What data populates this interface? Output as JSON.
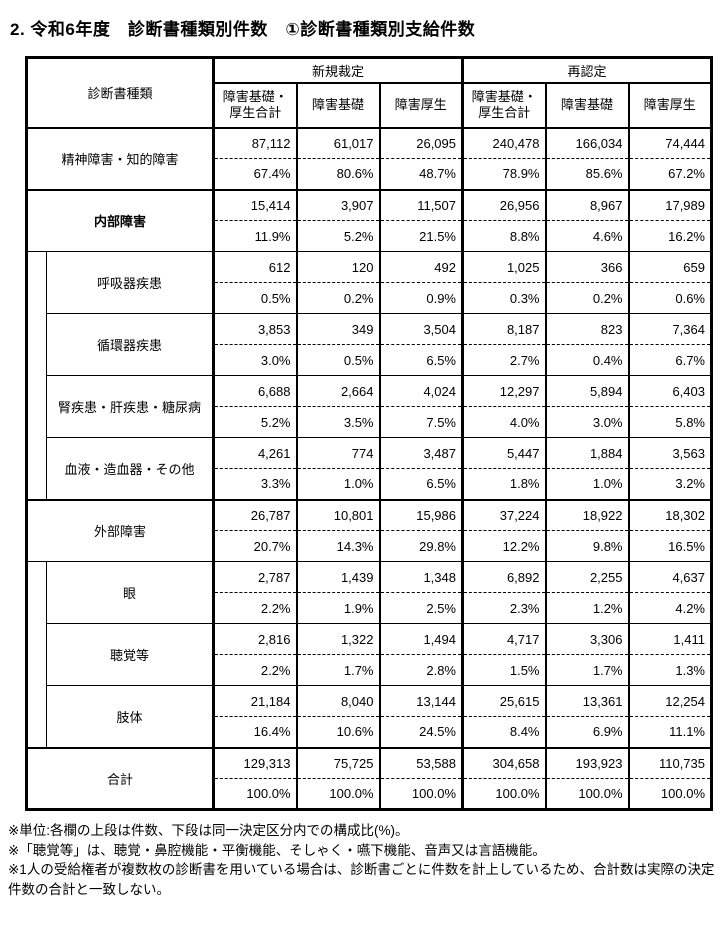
{
  "page": {
    "title": "2. 令和6年度　診断書種類別件数　①診断書種類別支給件数"
  },
  "table": {
    "corner_header": "診断書種類",
    "group_headers": [
      "新規裁定",
      "再認定"
    ],
    "column_headers": [
      "障害基礎・\n厚生合計",
      "障害基礎",
      "障害厚生",
      "障害基礎・\n厚生合計",
      "障害基礎",
      "障害厚生"
    ],
    "rows": [
      {
        "label": "精神障害・知的障害",
        "level": 0,
        "bold": false,
        "group_start": false,
        "counts": [
          "87,112",
          "61,017",
          "26,095",
          "240,478",
          "166,034",
          "74,444"
        ],
        "percents": [
          "67.4%",
          "80.6%",
          "48.7%",
          "78.9%",
          "85.6%",
          "67.2%"
        ]
      },
      {
        "label": "内部障害",
        "level": 0,
        "bold": true,
        "group_start": true,
        "counts": [
          "15,414",
          "3,907",
          "11,507",
          "26,956",
          "8,967",
          "17,989"
        ],
        "percents": [
          "11.9%",
          "5.2%",
          "21.5%",
          "8.8%",
          "4.6%",
          "16.2%"
        ]
      },
      {
        "label": "呼吸器疾患",
        "level": 1,
        "first_sub": true,
        "sub_rows": 4,
        "counts": [
          "612",
          "120",
          "492",
          "1,025",
          "366",
          "659"
        ],
        "percents": [
          "0.5%",
          "0.2%",
          "0.9%",
          "0.3%",
          "0.2%",
          "0.6%"
        ]
      },
      {
        "label": "循環器疾患",
        "level": 1,
        "counts": [
          "3,853",
          "349",
          "3,504",
          "8,187",
          "823",
          "7,364"
        ],
        "percents": [
          "3.0%",
          "0.5%",
          "6.5%",
          "2.7%",
          "0.4%",
          "6.7%"
        ]
      },
      {
        "label": "腎疾患・肝疾患・糖尿病",
        "level": 1,
        "counts": [
          "6,688",
          "2,664",
          "4,024",
          "12,297",
          "5,894",
          "6,403"
        ],
        "percents": [
          "5.2%",
          "3.5%",
          "7.5%",
          "4.0%",
          "3.0%",
          "5.8%"
        ]
      },
      {
        "label": "血液・造血器・その他",
        "level": 1,
        "counts": [
          "4,261",
          "774",
          "3,487",
          "5,447",
          "1,884",
          "3,563"
        ],
        "percents": [
          "3.3%",
          "1.0%",
          "6.5%",
          "1.8%",
          "1.0%",
          "3.2%"
        ]
      },
      {
        "label": "外部障害",
        "level": 0,
        "bold": false,
        "group_start": true,
        "counts": [
          "26,787",
          "10,801",
          "15,986",
          "37,224",
          "18,922",
          "18,302"
        ],
        "percents": [
          "20.7%",
          "14.3%",
          "29.8%",
          "12.2%",
          "9.8%",
          "16.5%"
        ]
      },
      {
        "label": "眼",
        "level": 1,
        "first_sub": true,
        "sub_rows": 3,
        "counts": [
          "2,787",
          "1,439",
          "1,348",
          "6,892",
          "2,255",
          "4,637"
        ],
        "percents": [
          "2.2%",
          "1.9%",
          "2.5%",
          "2.3%",
          "1.2%",
          "4.2%"
        ]
      },
      {
        "label": "聴覚等",
        "level": 1,
        "counts": [
          "2,816",
          "1,322",
          "1,494",
          "4,717",
          "3,306",
          "1,411"
        ],
        "percents": [
          "2.2%",
          "1.7%",
          "2.8%",
          "1.5%",
          "1.7%",
          "1.3%"
        ]
      },
      {
        "label": "肢体",
        "level": 1,
        "counts": [
          "21,184",
          "8,040",
          "13,144",
          "25,615",
          "13,361",
          "12,254"
        ],
        "percents": [
          "16.4%",
          "10.6%",
          "24.5%",
          "8.4%",
          "6.9%",
          "11.1%"
        ]
      },
      {
        "label": "合計",
        "level": 0,
        "bold": false,
        "group_start": true,
        "counts": [
          "129,313",
          "75,725",
          "53,588",
          "304,658",
          "193,923",
          "110,735"
        ],
        "percents": [
          "100.0%",
          "100.0%",
          "100.0%",
          "100.0%",
          "100.0%",
          "100.0%"
        ]
      }
    ]
  },
  "footnotes": [
    "※単位:各欄の上段は件数、下段は同一決定区分内での構成比(%)。",
    "※「聴覚等」は、聴覚・鼻腔機能・平衡機能、そしゃく・嚥下機能、音声又は言語機能。",
    "※1人の受給権者が複数枚の診断書を用いている場合は、診断書ごとに件数を計上しているため、合計数は実際の決定件数の合計と一致しない。"
  ]
}
